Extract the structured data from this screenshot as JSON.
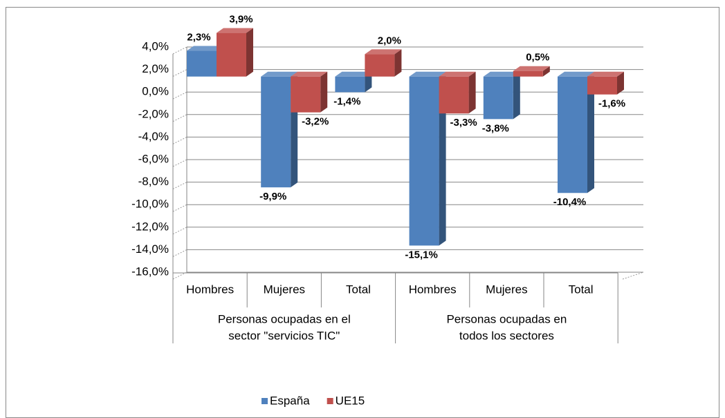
{
  "chart_data": {
    "type": "bar3d",
    "categories": [
      "Hombres",
      "Mujeres",
      "Total",
      "Hombres",
      "Mujeres",
      "Total"
    ],
    "groups": [
      {
        "lines": [
          "Personas ocupadas en el",
          "sector \"servicios TIC\""
        ],
        "span": [
          0,
          3
        ]
      },
      {
        "lines": [
          "Personas ocupadas en",
          "todos los sectores"
        ],
        "span": [
          3,
          6
        ]
      }
    ],
    "series": [
      {
        "name": "España",
        "color": "#4f81bd",
        "values": [
          2.3,
          -9.9,
          -1.4,
          -15.1,
          -3.8,
          -10.4
        ],
        "value_labels": [
          "2,3%",
          "-9,9%",
          "-1,4%",
          "-15,1%",
          "-3,8%",
          "-10,4%"
        ]
      },
      {
        "name": "UE15",
        "color": "#c0504d",
        "values": [
          3.9,
          -3.2,
          2.0,
          -3.3,
          0.5,
          -1.6
        ],
        "value_labels": [
          "3,9%",
          "-3,2%",
          "2,0%",
          "-3,3%",
          "0,5%",
          "-1,6%"
        ]
      }
    ],
    "ylim": [
      -16,
      4
    ],
    "yticks": [
      {
        "value": 4,
        "label": "4,0%"
      },
      {
        "value": 2,
        "label": "2,0%"
      },
      {
        "value": 0,
        "label": "0,0%"
      },
      {
        "value": -2,
        "label": "-2,0%"
      },
      {
        "value": -4,
        "label": "-4,0%"
      },
      {
        "value": -6,
        "label": "-6,0%"
      },
      {
        "value": -8,
        "label": "-8,0%"
      },
      {
        "value": -10,
        "label": "-10,0%"
      },
      {
        "value": -12,
        "label": "-12,0%"
      },
      {
        "value": -14,
        "label": "-14,0%"
      },
      {
        "value": -16,
        "label": "-16,0%"
      }
    ],
    "grid": true,
    "legend": "bottom"
  }
}
